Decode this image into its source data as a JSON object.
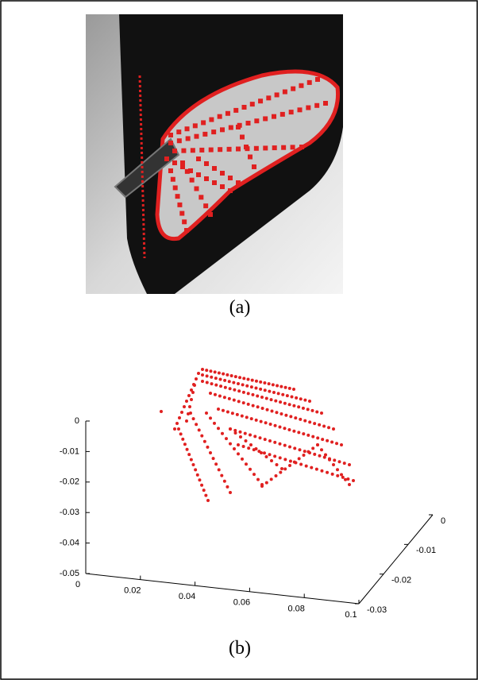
{
  "panels": [
    {
      "caption": "(a)"
    },
    {
      "caption": "(b)",
      "z_ticks": [
        "0",
        "-0.01",
        "-0.02",
        "-0.03",
        "-0.04",
        "-0.05"
      ],
      "x_ticks": [
        "0",
        "0.02",
        "0.04",
        "0.06",
        "0.08",
        "0.1"
      ],
      "y_ticks": [
        "-0.03",
        "-0.02",
        "-0.01",
        "0"
      ]
    }
  ]
}
